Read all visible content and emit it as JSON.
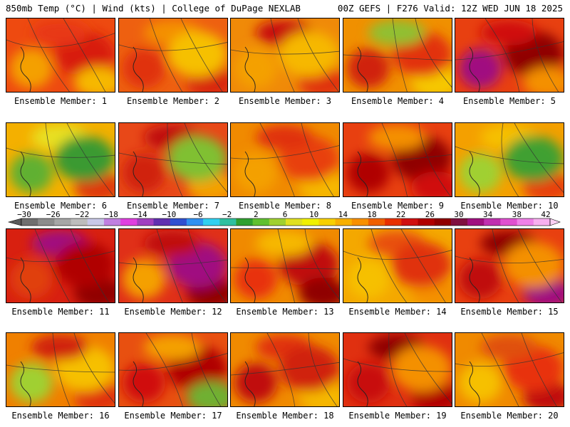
{
  "header": {
    "left": "850mb Temp (°C) | Wind (kts) | College of DuPage NEXLAB",
    "right": "00Z GEFS | F276 Valid: 12Z WED JUN 18 2025"
  },
  "colorbar": {
    "ticks": [
      "−30",
      "−26",
      "−22",
      "−18",
      "−14",
      "−10",
      "−6",
      "−2",
      "2",
      "6",
      "10",
      "14",
      "18",
      "22",
      "26",
      "30",
      "34",
      "38",
      "42"
    ],
    "colors": [
      "#6f6f6f",
      "#8c8c8c",
      "#a6a6a6",
      "#bdbdbd",
      "#c8c8e8",
      "#c080e0",
      "#e040e0",
      "#a040c0",
      "#6030b0",
      "#3050d0",
      "#3090f0",
      "#30d0f0",
      "#30c0a0",
      "#30a030",
      "#60c030",
      "#a0d030",
      "#e0e020",
      "#f0f000",
      "#f8d000",
      "#f8b000",
      "#f89000",
      "#f06000",
      "#e83000",
      "#d01010",
      "#b00000",
      "#900000",
      "#801040",
      "#a01080",
      "#c030b0",
      "#e050d0",
      "#f080e8",
      "#f8b0f0"
    ]
  },
  "panels": [
    {
      "label": "Ensemble Member: 1",
      "base": "#ee4a10",
      "blobs": [
        {
          "c": "#d81e10"
        },
        {
          "c": "#f4a000"
        },
        {
          "c": "#e83818"
        },
        {
          "c": "#f6b800"
        }
      ]
    },
    {
      "label": "Ensemble Member: 2",
      "base": "#ee6010",
      "blobs": [
        {
          "c": "#e03010"
        },
        {
          "c": "#f49000"
        },
        {
          "c": "#d82810"
        },
        {
          "c": "#f6c000"
        }
      ]
    },
    {
      "label": "Ensemble Member: 3",
      "base": "#f08a08",
      "blobs": [
        {
          "c": "#c81010"
        },
        {
          "c": "#e03010"
        },
        {
          "c": "#f6b800"
        },
        {
          "c": "#f4a000"
        }
      ]
    },
    {
      "label": "Ensemble Member: 4",
      "base": "#f09000",
      "blobs": [
        {
          "c": "#f6c800"
        },
        {
          "c": "#e23010"
        },
        {
          "c": "#d02010"
        },
        {
          "c": "#90c030"
        }
      ]
    },
    {
      "label": "Ensemble Member: 5",
      "base": "#e84010",
      "blobs": [
        {
          "c": "#900000"
        },
        {
          "c": "#a01080"
        },
        {
          "c": "#d01010"
        },
        {
          "c": "#f49000"
        }
      ]
    },
    {
      "label": "Ensemble Member: 6",
      "base": "#f4b000",
      "blobs": [
        {
          "c": "#60b030"
        },
        {
          "c": "#e8e020"
        },
        {
          "c": "#e03810"
        },
        {
          "c": "#3a9a30"
        }
      ]
    },
    {
      "label": "Ensemble Member: 7",
      "base": "#e84818",
      "blobs": [
        {
          "c": "#c01010"
        },
        {
          "c": "#f4a000"
        },
        {
          "c": "#80c030"
        },
        {
          "c": "#d02010"
        }
      ]
    },
    {
      "label": "Ensemble Member: 8",
      "base": "#f08a00",
      "blobs": [
        {
          "c": "#f6b800"
        },
        {
          "c": "#e84010"
        },
        {
          "c": "#f4a000"
        },
        {
          "c": "#e03010"
        }
      ]
    },
    {
      "label": "Ensemble Member: 9",
      "base": "#e84010",
      "blobs": [
        {
          "c": "#900000"
        },
        {
          "c": "#b00000"
        },
        {
          "c": "#f49000"
        },
        {
          "c": "#d01010"
        }
      ]
    },
    {
      "label": "Ensemble Member: 10",
      "base": "#f4a000",
      "blobs": [
        {
          "c": "#a0d030"
        },
        {
          "c": "#f6c000"
        },
        {
          "c": "#e84010"
        },
        {
          "c": "#40a030"
        }
      ]
    },
    {
      "label": "Ensemble Member: 11",
      "base": "#d82010",
      "blobs": [
        {
          "c": "#a01080"
        },
        {
          "c": "#900000"
        },
        {
          "c": "#b00000"
        },
        {
          "c": "#e04010"
        }
      ]
    },
    {
      "label": "Ensemble Member: 12",
      "base": "#e03018",
      "blobs": [
        {
          "c": "#900000"
        },
        {
          "c": "#a01080"
        },
        {
          "c": "#f4a000"
        },
        {
          "c": "#c01010"
        }
      ]
    },
    {
      "label": "Ensemble Member: 13",
      "base": "#f08a00",
      "blobs": [
        {
          "c": "#c01010"
        },
        {
          "c": "#e83010"
        },
        {
          "c": "#f6b800"
        },
        {
          "c": "#900000"
        }
      ]
    },
    {
      "label": "Ensemble Member: 14",
      "base": "#f4a800",
      "blobs": [
        {
          "c": "#f6c000"
        },
        {
          "c": "#e85010"
        },
        {
          "c": "#f49000"
        },
        {
          "c": "#e03010"
        }
      ]
    },
    {
      "label": "Ensemble Member: 15",
      "base": "#e84010",
      "blobs": [
        {
          "c": "#900000"
        },
        {
          "c": "#a01080"
        },
        {
          "c": "#f49000"
        },
        {
          "c": "#c01010"
        }
      ]
    },
    {
      "label": "Ensemble Member: 16",
      "base": "#f08000",
      "blobs": [
        {
          "c": "#e03010"
        },
        {
          "c": "#f6c000"
        },
        {
          "c": "#a0d030"
        },
        {
          "c": "#d02010"
        }
      ]
    },
    {
      "label": "Ensemble Member: 17",
      "base": "#e85010",
      "blobs": [
        {
          "c": "#b00000"
        },
        {
          "c": "#d01010"
        },
        {
          "c": "#f4a000"
        },
        {
          "c": "#70b030"
        }
      ]
    },
    {
      "label": "Ensemble Member: 18",
      "base": "#f08a00",
      "blobs": [
        {
          "c": "#c01010"
        },
        {
          "c": "#e03010"
        },
        {
          "c": "#f6b800"
        },
        {
          "c": "#d02010"
        }
      ]
    },
    {
      "label": "Ensemble Member: 19",
      "base": "#e03010",
      "blobs": [
        {
          "c": "#900000"
        },
        {
          "c": "#b00000"
        },
        {
          "c": "#f49000"
        },
        {
          "c": "#c81010"
        }
      ]
    },
    {
      "label": "Ensemble Member: 20",
      "base": "#f08a00",
      "blobs": [
        {
          "c": "#c01010"
        },
        {
          "c": "#e83010"
        },
        {
          "c": "#f6c000"
        },
        {
          "c": "#e05010"
        }
      ]
    }
  ]
}
